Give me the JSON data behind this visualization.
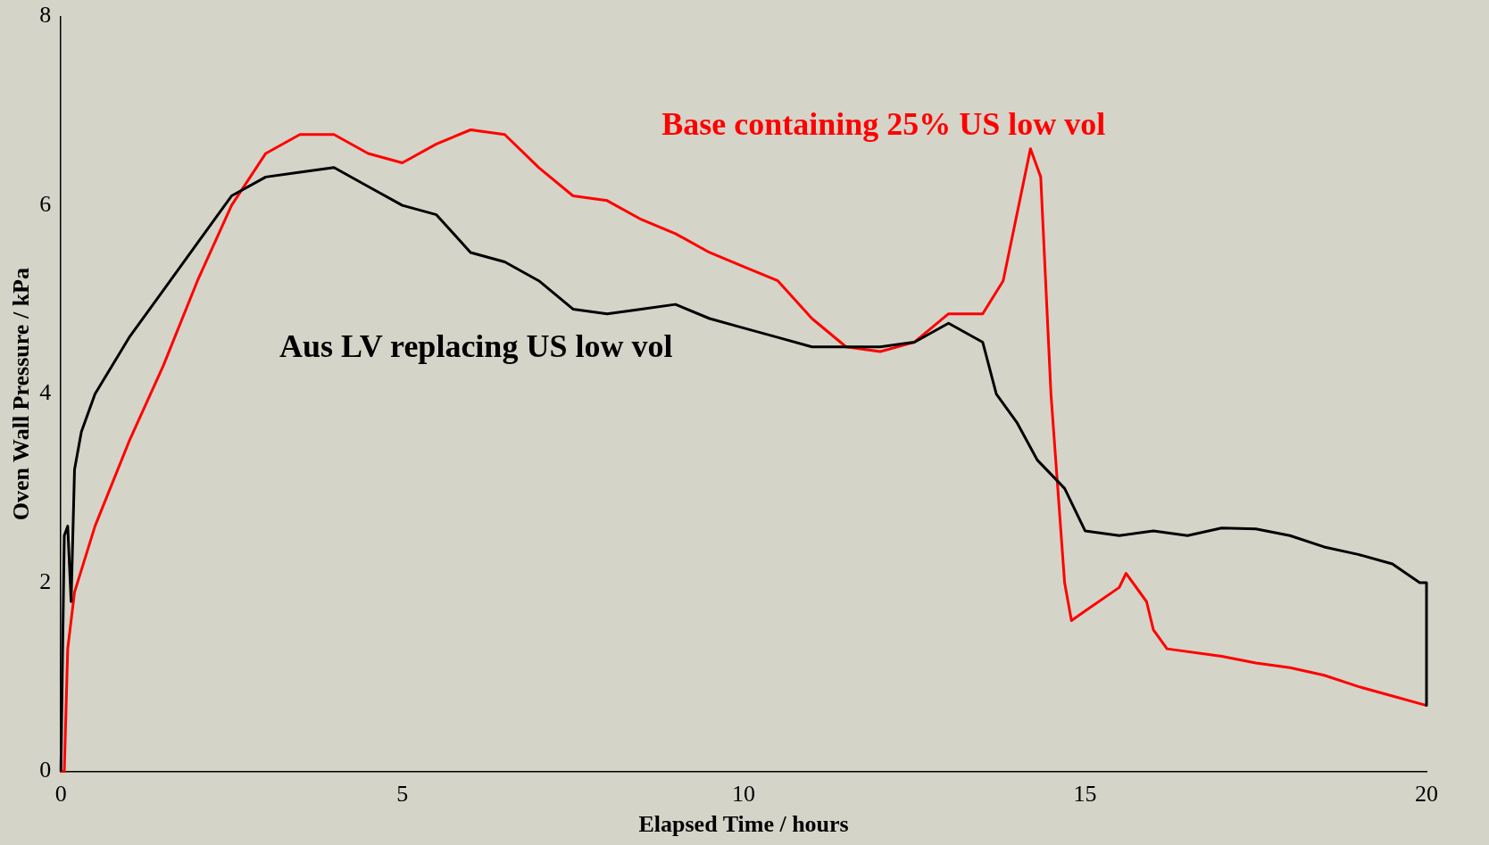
{
  "chart_data": {
    "type": "line",
    "xlabel": "Elapsed Time / hours",
    "ylabel": "Oven Wall Pressure / kPa",
    "xlim": [
      0,
      20
    ],
    "xticks": [
      0,
      5,
      10,
      15,
      20
    ],
    "ylim": [
      0,
      8
    ],
    "yticks": [
      0,
      2,
      4,
      6,
      8
    ],
    "grid": false,
    "legend": false,
    "marker": "none",
    "line_style": "solid",
    "series": [
      {
        "name": "Aus LV replacing US low vol",
        "color": "#000000",
        "x": [
          0,
          0.05,
          0.1,
          0.15,
          0.2,
          0.3,
          0.5,
          1,
          1.5,
          2,
          2.5,
          3,
          3.5,
          4,
          4.5,
          5,
          5.5,
          6,
          6.5,
          7,
          7.5,
          8,
          8.5,
          9,
          9.5,
          10,
          10.5,
          11,
          12,
          12.5,
          13,
          13.5,
          13.7,
          14,
          14.3,
          14.7,
          15,
          15.5,
          16,
          16.5,
          17,
          17.5,
          18,
          18.5,
          19,
          19.5,
          19.9,
          20,
          20
        ],
        "values": [
          0,
          2.5,
          2.6,
          1.8,
          3.2,
          3.6,
          4.0,
          4.6,
          5.1,
          5.6,
          6.1,
          6.3,
          6.35,
          6.4,
          6.2,
          6.0,
          5.9,
          5.5,
          5.4,
          5.2,
          4.9,
          4.85,
          4.9,
          4.95,
          4.8,
          4.7,
          4.6,
          4.5,
          4.5,
          4.55,
          4.75,
          4.55,
          4.0,
          3.7,
          3.3,
          3.0,
          2.55,
          2.5,
          2.55,
          2.5,
          2.58,
          2.57,
          2.5,
          2.38,
          2.3,
          2.2,
          2.0,
          2.0,
          0.7
        ]
      },
      {
        "name": "Base containing 25% US low vol",
        "color": "#ff0000",
        "x": [
          0,
          0.05,
          0.1,
          0.2,
          0.5,
          1,
          1.5,
          2,
          2.5,
          3,
          3.5,
          4,
          4.5,
          5,
          5.5,
          6,
          6.5,
          7,
          7.5,
          8,
          8.5,
          9,
          9.5,
          10,
          10.5,
          11,
          11.5,
          12,
          12.5,
          13,
          13.5,
          13.8,
          14,
          14.2,
          14.35,
          14.5,
          14.7,
          14.8,
          15,
          15.5,
          15.6,
          15.9,
          16,
          16.2,
          17,
          17.5,
          18,
          18.5,
          19,
          19.5,
          20
        ],
        "values": [
          0,
          0,
          1.3,
          1.9,
          2.6,
          3.5,
          4.3,
          5.2,
          6.0,
          6.55,
          6.75,
          6.75,
          6.55,
          6.45,
          6.65,
          6.8,
          6.75,
          6.4,
          6.1,
          6.05,
          5.85,
          5.7,
          5.5,
          5.35,
          5.2,
          4.8,
          4.5,
          4.45,
          4.55,
          4.85,
          4.85,
          5.2,
          5.9,
          6.6,
          6.3,
          4.0,
          2.0,
          1.6,
          1.7,
          1.95,
          2.1,
          1.8,
          1.5,
          1.3,
          1.22,
          1.15,
          1.1,
          1.02,
          0.9,
          0.8,
          0.7
        ]
      }
    ]
  }
}
